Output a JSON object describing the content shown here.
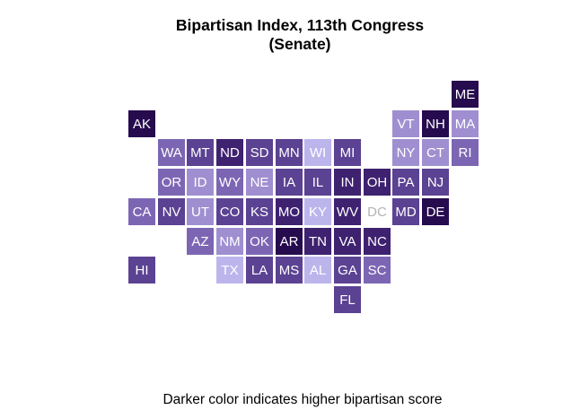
{
  "title_line1": "Bipartisan Index, 113th Congress",
  "title_line2": "(Senate)",
  "caption": "Darker color indicates higher bipartisan score",
  "palette": {
    "1": "#bcb5ec",
    "2": "#9f8fd0",
    "3": "#7c66b4",
    "4": "#5b4292",
    "5": "#3e2270",
    "6": "#260b4e"
  },
  "states": [
    {
      "abbr": "ME",
      "row": 0,
      "col": 11,
      "shade": 6
    },
    {
      "abbr": "AK",
      "row": 1,
      "col": 0,
      "shade": 6
    },
    {
      "abbr": "VT",
      "row": 1,
      "col": 9,
      "shade": 2
    },
    {
      "abbr": "NH",
      "row": 1,
      "col": 10,
      "shade": 6
    },
    {
      "abbr": "MA",
      "row": 1,
      "col": 11,
      "shade": 2
    },
    {
      "abbr": "WA",
      "row": 2,
      "col": 1,
      "shade": 3
    },
    {
      "abbr": "MT",
      "row": 2,
      "col": 2,
      "shade": 4
    },
    {
      "abbr": "ND",
      "row": 2,
      "col": 3,
      "shade": 5
    },
    {
      "abbr": "SD",
      "row": 2,
      "col": 4,
      "shade": 4
    },
    {
      "abbr": "MN",
      "row": 2,
      "col": 5,
      "shade": 4
    },
    {
      "abbr": "WI",
      "row": 2,
      "col": 6,
      "shade": 1
    },
    {
      "abbr": "MI",
      "row": 2,
      "col": 7,
      "shade": 4
    },
    {
      "abbr": "NY",
      "row": 2,
      "col": 9,
      "shade": 2
    },
    {
      "abbr": "CT",
      "row": 2,
      "col": 10,
      "shade": 2
    },
    {
      "abbr": "RI",
      "row": 2,
      "col": 11,
      "shade": 3
    },
    {
      "abbr": "OR",
      "row": 3,
      "col": 1,
      "shade": 3
    },
    {
      "abbr": "ID",
      "row": 3,
      "col": 2,
      "shade": 2
    },
    {
      "abbr": "WY",
      "row": 3,
      "col": 3,
      "shade": 3
    },
    {
      "abbr": "NE",
      "row": 3,
      "col": 4,
      "shade": 2
    },
    {
      "abbr": "IA",
      "row": 3,
      "col": 5,
      "shade": 4
    },
    {
      "abbr": "IL",
      "row": 3,
      "col": 6,
      "shade": 4
    },
    {
      "abbr": "IN",
      "row": 3,
      "col": 7,
      "shade": 5
    },
    {
      "abbr": "OH",
      "row": 3,
      "col": 8,
      "shade": 5
    },
    {
      "abbr": "PA",
      "row": 3,
      "col": 9,
      "shade": 4
    },
    {
      "abbr": "NJ",
      "row": 3,
      "col": 10,
      "shade": 4
    },
    {
      "abbr": "CA",
      "row": 4,
      "col": 0,
      "shade": 3
    },
    {
      "abbr": "NV",
      "row": 4,
      "col": 1,
      "shade": 4
    },
    {
      "abbr": "UT",
      "row": 4,
      "col": 2,
      "shade": 2
    },
    {
      "abbr": "CO",
      "row": 4,
      "col": 3,
      "shade": 4
    },
    {
      "abbr": "KS",
      "row": 4,
      "col": 4,
      "shade": 4
    },
    {
      "abbr": "MO",
      "row": 4,
      "col": 5,
      "shade": 5
    },
    {
      "abbr": "KY",
      "row": 4,
      "col": 6,
      "shade": 1
    },
    {
      "abbr": "WV",
      "row": 4,
      "col": 7,
      "shade": 5
    },
    {
      "abbr": "DC",
      "row": 4,
      "col": 8,
      "shade": 0
    },
    {
      "abbr": "MD",
      "row": 4,
      "col": 9,
      "shade": 4
    },
    {
      "abbr": "DE",
      "row": 4,
      "col": 10,
      "shade": 6
    },
    {
      "abbr": "AZ",
      "row": 5,
      "col": 2,
      "shade": 3
    },
    {
      "abbr": "NM",
      "row": 5,
      "col": 3,
      "shade": 2
    },
    {
      "abbr": "OK",
      "row": 5,
      "col": 4,
      "shade": 3
    },
    {
      "abbr": "AR",
      "row": 5,
      "col": 5,
      "shade": 6
    },
    {
      "abbr": "TN",
      "row": 5,
      "col": 6,
      "shade": 5
    },
    {
      "abbr": "VA",
      "row": 5,
      "col": 7,
      "shade": 5
    },
    {
      "abbr": "NC",
      "row": 5,
      "col": 8,
      "shade": 5
    },
    {
      "abbr": "HI",
      "row": 6,
      "col": 0,
      "shade": 4
    },
    {
      "abbr": "TX",
      "row": 6,
      "col": 3,
      "shade": 1
    },
    {
      "abbr": "LA",
      "row": 6,
      "col": 4,
      "shade": 4
    },
    {
      "abbr": "MS",
      "row": 6,
      "col": 5,
      "shade": 4
    },
    {
      "abbr": "AL",
      "row": 6,
      "col": 6,
      "shade": 1
    },
    {
      "abbr": "GA",
      "row": 6,
      "col": 7,
      "shade": 4
    },
    {
      "abbr": "SC",
      "row": 6,
      "col": 8,
      "shade": 3
    },
    {
      "abbr": "FL",
      "row": 7,
      "col": 7,
      "shade": 4
    }
  ]
}
